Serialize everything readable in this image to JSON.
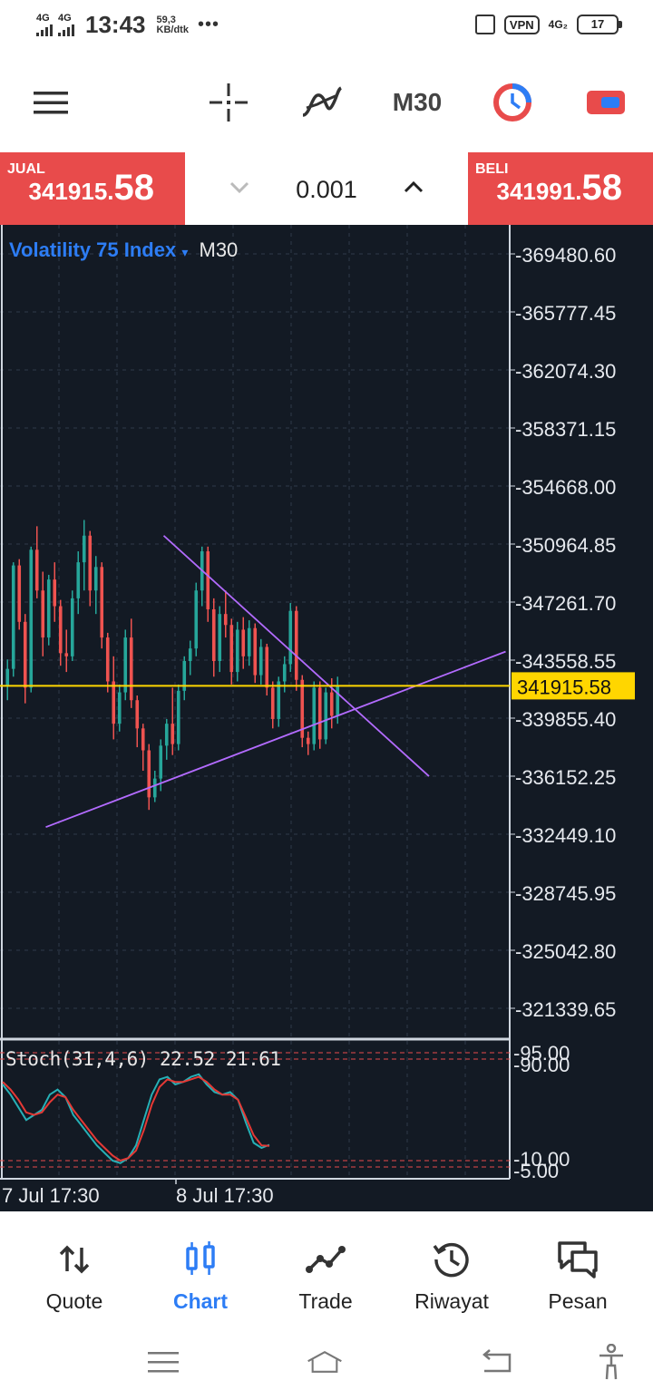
{
  "status_bar": {
    "network1": "4G",
    "network2": "4G",
    "time": "13:43",
    "speed_value": "59,3",
    "speed_unit": "KB/dtk",
    "dots": "•••",
    "vpn": "VPN",
    "net_right": "4G₂",
    "battery": "17"
  },
  "toolbar": {
    "timeframe": "M30"
  },
  "trade": {
    "sell_label": "JUAL",
    "sell_price_main": "341915.",
    "sell_price_big": "58",
    "buy_label": "BELI",
    "buy_price_main": "341991.",
    "buy_price_big": "58",
    "lot_value": "0.001"
  },
  "chart": {
    "symbol": "Volatility 75 Index",
    "symbol_arrow": "▾",
    "timeframe": "M30",
    "current_price": "341915.58",
    "price_labels": [
      "369480.60",
      "365777.45",
      "362074.30",
      "358371.15",
      "354668.00",
      "350964.85",
      "347261.70",
      "343558.55",
      "339855.40",
      "336152.25",
      "332449.10",
      "328745.95",
      "325042.80",
      "321339.65"
    ],
    "stoch_label": "Stoch(31,4,6) 22.52 21.61",
    "stoch_levels": [
      "95.00",
      "90.00",
      "10.00",
      "5.00"
    ],
    "time_labels": [
      "7 Jul 17:30",
      "8 Jul 17:30"
    ],
    "colors": {
      "background": "#131a24",
      "bull": "#26a69a",
      "bear": "#ef5350",
      "trendline": "#b36bff",
      "price_line": "#ffd600",
      "price_tag_bg": "#ffd600"
    }
  },
  "chart_data": {
    "type": "candlestick",
    "symbol": "Volatility 75 Index",
    "timeframe": "M30",
    "ylim": [
      319488,
      371332
    ],
    "ohlc": [
      [
        341900,
        343600,
        341000,
        343000
      ],
      [
        343000,
        349800,
        342500,
        349600
      ],
      [
        349600,
        350000,
        345500,
        346000
      ],
      [
        346000,
        346500,
        340800,
        341800
      ],
      [
        341800,
        350800,
        341500,
        350600
      ],
      [
        350600,
        352100,
        347500,
        348000
      ],
      [
        348000,
        349200,
        343800,
        345000
      ],
      [
        345000,
        349000,
        344500,
        348700
      ],
      [
        348700,
        349800,
        346000,
        347000
      ],
      [
        347000,
        347400,
        343200,
        344000
      ],
      [
        344000,
        345500,
        342800,
        343800
      ],
      [
        343800,
        348000,
        343500,
        347500
      ],
      [
        347500,
        350500,
        346500,
        349800
      ],
      [
        349800,
        352500,
        348000,
        351500
      ],
      [
        351500,
        351800,
        347000,
        348000
      ],
      [
        348000,
        350200,
        346500,
        349500
      ],
      [
        349500,
        349800,
        344300,
        345000
      ],
      [
        345000,
        345300,
        341500,
        342200
      ],
      [
        342200,
        343800,
        338500,
        339500
      ],
      [
        339500,
        342000,
        339000,
        341500
      ],
      [
        341500,
        345500,
        341000,
        345000
      ],
      [
        345000,
        346200,
        340500,
        341000
      ],
      [
        341000,
        341300,
        338000,
        339200
      ],
      [
        339200,
        339500,
        336500,
        337800
      ],
      [
        337800,
        338200,
        334000,
        334800
      ],
      [
        334800,
        336500,
        334500,
        336000
      ],
      [
        336000,
        338500,
        335200,
        338100
      ],
      [
        338100,
        339800,
        337200,
        339500
      ],
      [
        339500,
        341800,
        337500,
        338200
      ],
      [
        338200,
        342000,
        337800,
        341600
      ],
      [
        341600,
        343800,
        341000,
        343500
      ],
      [
        343500,
        344800,
        342600,
        344300
      ],
      [
        344300,
        348500,
        343800,
        348000
      ],
      [
        348000,
        350800,
        347000,
        350500
      ],
      [
        350500,
        350800,
        346000,
        346800
      ],
      [
        346800,
        347500,
        342500,
        343500
      ],
      [
        343500,
        347000,
        342800,
        346500
      ],
      [
        346500,
        348000,
        345000,
        345800
      ],
      [
        345800,
        346200,
        342000,
        342800
      ],
      [
        342800,
        346000,
        342200,
        345500
      ],
      [
        345500,
        346300,
        343000,
        343800
      ],
      [
        343800,
        346100,
        343200,
        345600
      ],
      [
        345600,
        345900,
        342100,
        342600
      ],
      [
        342600,
        344900,
        342000,
        344400
      ],
      [
        344400,
        344600,
        341300,
        341800
      ],
      [
        341800,
        342200,
        339200,
        339800
      ],
      [
        339800,
        342500,
        339300,
        342200
      ],
      [
        342200,
        343800,
        341500,
        343300
      ],
      [
        343300,
        347200,
        342800,
        346700
      ],
      [
        346700,
        347000,
        341600,
        342300
      ],
      [
        342300,
        342600,
        338000,
        338600
      ],
      [
        338600,
        339000,
        337500,
        338200
      ],
      [
        338200,
        342200,
        337800,
        341800
      ],
      [
        341800,
        342200,
        337900,
        338500
      ],
      [
        338500,
        341800,
        338200,
        341500
      ],
      [
        341500,
        342400,
        339200,
        340000
      ],
      [
        340000,
        342500,
        339500,
        341915
      ]
    ],
    "trendlines": [
      {
        "name": "upper",
        "from_bar": 27,
        "from_price": 351500,
        "to_bar": 72,
        "to_price": 336150
      },
      {
        "name": "lower",
        "from_bar": 7,
        "from_price": 332900,
        "to_bar": 85,
        "to_price": 344100
      }
    ],
    "stochastic": {
      "label": "Stoch(31,4,6)",
      "main_last": 22.52,
      "signal_last": 21.61,
      "levels": [
        95,
        90,
        10,
        5
      ],
      "main": [
        70,
        62,
        52,
        42,
        46,
        50,
        62,
        66,
        60,
        46,
        38,
        30,
        22,
        16,
        10,
        8,
        12,
        22,
        42,
        62,
        74,
        76,
        70,
        72,
        76,
        78,
        70,
        64,
        62,
        64,
        58,
        40,
        24,
        20,
        22.52
      ],
      "signal": [
        72,
        66,
        58,
        48,
        46,
        48,
        56,
        62,
        60,
        50,
        42,
        34,
        26,
        20,
        14,
        10,
        12,
        18,
        34,
        54,
        68,
        74,
        72,
        72,
        74,
        76,
        72,
        66,
        62,
        62,
        58,
        44,
        30,
        22,
        21.61
      ]
    },
    "time_labels": [
      "7 Jul 17:30",
      "8 Jul 17:30"
    ]
  },
  "bottom_nav": {
    "items": [
      {
        "label": "Quote",
        "icon": "quote-arrows-icon"
      },
      {
        "label": "Chart",
        "icon": "chart-candles-icon"
      },
      {
        "label": "Trade",
        "icon": "trade-line-icon"
      },
      {
        "label": "Riwayat",
        "icon": "history-icon"
      },
      {
        "label": "Pesan",
        "icon": "messages-icon"
      }
    ]
  }
}
